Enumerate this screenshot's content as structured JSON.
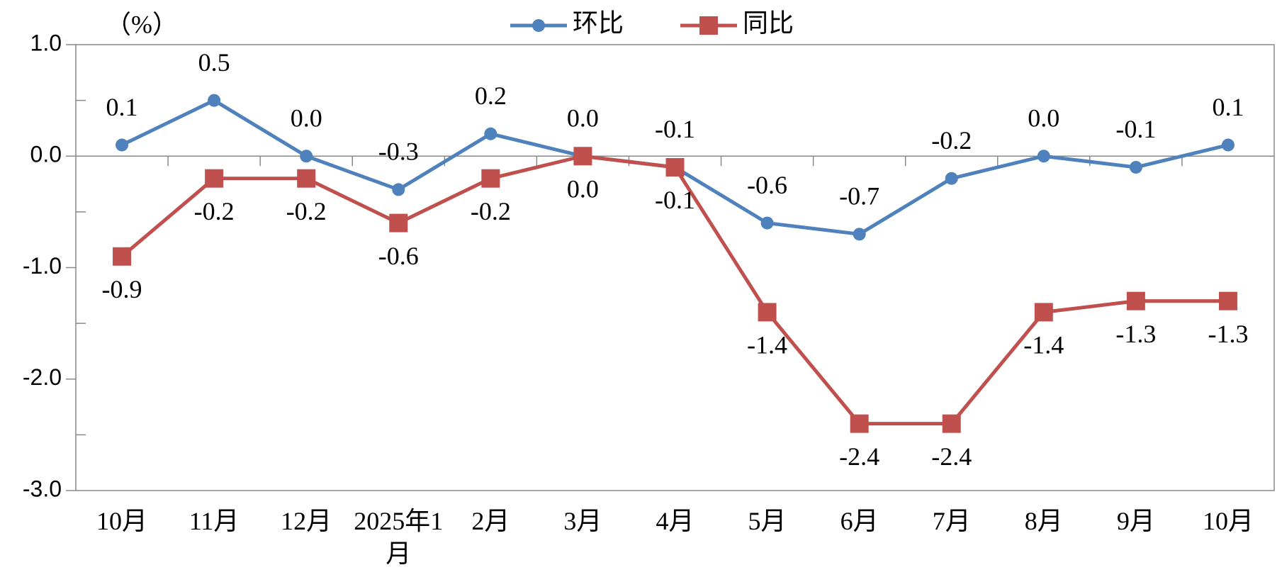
{
  "chart_data": {
    "type": "line",
    "y_axis_label": "（%）",
    "categories": [
      "10月",
      "11月",
      "12月",
      "2025年1月",
      "2月",
      "3月",
      "4月",
      "5月",
      "6月",
      "7月",
      "8月",
      "9月",
      "10月"
    ],
    "series": [
      {
        "name": "环比",
        "color": "#4f81bd",
        "marker": "circle",
        "values": [
          0.1,
          0.5,
          0,
          -0.3,
          0.2,
          0,
          -0.1,
          -0.6,
          -0.7,
          -0.2,
          0,
          -0.1,
          0.1
        ],
        "value_labels": [
          "0.1",
          "0.5",
          "0.0",
          "-0.3",
          "0.2",
          "0.0",
          "-0.1",
          "-0.6",
          "-0.7",
          "-0.2",
          "0.0",
          "-0.1",
          "0.1"
        ]
      },
      {
        "name": "同比",
        "color": "#c0504d",
        "marker": "square",
        "values": [
          -0.9,
          -0.2,
          -0.2,
          -0.6,
          -0.2,
          0,
          -0.1,
          -1.4,
          -2.4,
          -2.4,
          -1.4,
          -1.3,
          -1.3
        ],
        "value_labels": [
          "-0.9",
          "-0.2",
          "-0.2",
          "-0.6",
          "-0.2",
          "0.0",
          "-0.1",
          "-1.4",
          "-2.4",
          "-2.4",
          "-1.4",
          "-1.3",
          "-1.3"
        ]
      }
    ],
    "ylim": [
      -3,
      1
    ],
    "yticks": [
      {
        "value": 1,
        "label": "1.0"
      },
      {
        "value": 0,
        "label": "0.0"
      },
      {
        "value": -1,
        "label": "-1.0"
      },
      {
        "value": -2,
        "label": "-2.0"
      },
      {
        "value": -3,
        "label": "-3.0"
      }
    ],
    "yminorticks": [
      0.5,
      -0.5,
      -1.5,
      -2.5
    ],
    "legend": "top"
  }
}
